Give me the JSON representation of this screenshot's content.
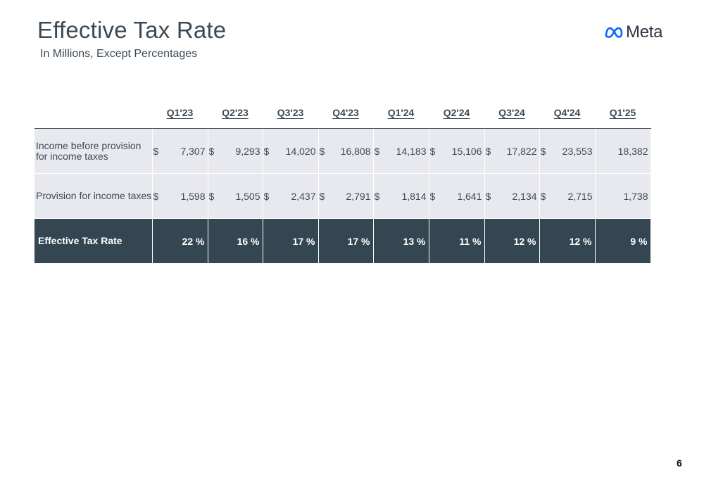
{
  "slide": {
    "title": "Effective Tax Rate",
    "subtitle": "In Millions, Except Percentages",
    "logo_text": "Meta",
    "logo_icon": "meta-infinity-logo-icon",
    "page_number": "6"
  },
  "table": {
    "columns": [
      "Q1'23",
      "Q2'23",
      "Q3'23",
      "Q4'23",
      "Q1'24",
      "Q2'24",
      "Q3'24",
      "Q4'24",
      "Q1'25"
    ],
    "currency_symbol": "$",
    "rows": [
      {
        "label": "Income before provision for income taxes",
        "values": [
          "7,307",
          "9,293",
          "14,020",
          "16,808",
          "14,183",
          "15,106",
          "17,822",
          "23,553",
          "18,382"
        ]
      },
      {
        "label": "Provision for income taxes",
        "values": [
          "1,598",
          "1,505",
          "2,437",
          "2,791",
          "1,814",
          "1,641",
          "2,134",
          "2,715",
          "1,738"
        ]
      },
      {
        "label": "Effective Tax Rate",
        "values": [
          "22 %",
          "16 %",
          "17 %",
          "17 %",
          "13 %",
          "11 %",
          "12 %",
          "12 %",
          "9 %"
        ]
      }
    ]
  },
  "colors": {
    "header_text": "#3b4a55",
    "row_background": "#e8e9ee",
    "highlight_row_background": "#344651",
    "highlight_row_text": "#ffffff",
    "logo_blue": "#0866ff"
  }
}
